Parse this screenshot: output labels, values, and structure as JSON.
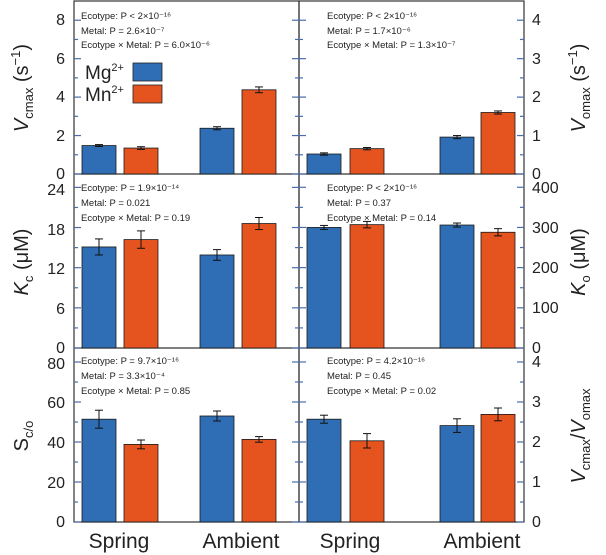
{
  "colors": {
    "mg": "#2f6db4",
    "mn": "#e5531e",
    "tick": "#4a6da8"
  },
  "legend": {
    "mg_label": "Mg",
    "mg_sup": "2+",
    "mn_label": "Mn",
    "mn_sup": "2+"
  },
  "chart_data": [
    {
      "type": "bar",
      "panel": "top-left",
      "ylabel": "V_cmax (s⁻¹)",
      "categories": [
        "Spring",
        "Ambient"
      ],
      "ylim": [
        0,
        9
      ],
      "yticks": [
        0,
        2,
        4,
        6,
        8
      ],
      "series": [
        {
          "name": "Mg2+",
          "values": [
            1.48,
            2.38
          ],
          "errors": [
            0.05,
            0.08
          ]
        },
        {
          "name": "Mn2+",
          "values": [
            1.35,
            4.38
          ],
          "errors": [
            0.07,
            0.15
          ]
        }
      ],
      "stats": [
        "Ecotype: P < 2×10⁻¹⁶",
        "Metal: P = 2.6×10⁻⁷",
        "Ecotype × Metal: P = 6.0×10⁻⁶"
      ]
    },
    {
      "type": "bar",
      "panel": "top-right",
      "ylabel": "V_omax (s⁻¹)",
      "categories": [
        "Spring",
        "Ambient"
      ],
      "ylim": [
        0,
        4.5
      ],
      "yticks": [
        0,
        1,
        2,
        3,
        4
      ],
      "series": [
        {
          "name": "Mg2+",
          "values": [
            0.52,
            0.96
          ],
          "errors": [
            0.03,
            0.04
          ]
        },
        {
          "name": "Mn2+",
          "values": [
            0.66,
            1.6
          ],
          "errors": [
            0.03,
            0.04
          ]
        }
      ],
      "stats": [
        "Ecotype: P < 2×10⁻¹⁶",
        "Metal: P = 1.7×10⁻⁶",
        "Ecotype × Metal: P = 1.3×10⁻⁷"
      ]
    },
    {
      "type": "bar",
      "panel": "middle-left",
      "ylabel": "K_c (μM)",
      "categories": [
        "Spring",
        "Ambient"
      ],
      "ylim": [
        0,
        26
      ],
      "yticks": [
        0,
        6,
        12,
        18,
        24
      ],
      "series": [
        {
          "name": "Mg2+",
          "values": [
            15.1,
            13.9
          ],
          "errors": [
            1.2,
            0.8
          ]
        },
        {
          "name": "Mn2+",
          "values": [
            16.2,
            18.6
          ],
          "errors": [
            1.3,
            0.9
          ]
        }
      ],
      "stats": [
        "Ecotype: P = 1.9×10⁻¹⁴",
        "Metal: P = 0.021",
        "Ecotype × Metal: P = 0.19"
      ]
    },
    {
      "type": "bar",
      "panel": "middle-right",
      "ylabel": "K_o (μM)",
      "categories": [
        "Spring",
        "Ambient"
      ],
      "ylim": [
        0,
        433
      ],
      "yticks": [
        0,
        100,
        200,
        300,
        400
      ],
      "series": [
        {
          "name": "Mg2+",
          "values": [
            300,
            306
          ],
          "errors": [
            5,
            5
          ]
        },
        {
          "name": "Mn2+",
          "values": [
            307,
            288
          ],
          "errors": [
            8,
            9
          ]
        }
      ],
      "stats": [
        "Ecotype: P < 2×10⁻¹⁶",
        "Metal: P = 0.37",
        "Ecotype × Metal: P = 0.14"
      ]
    },
    {
      "type": "bar",
      "panel": "bottom-left",
      "ylabel": "S_c/o",
      "categories": [
        "Spring",
        "Ambient"
      ],
      "ylim": [
        0,
        87
      ],
      "yticks": [
        0,
        20,
        40,
        60,
        80
      ],
      "series": [
        {
          "name": "Mg2+",
          "values": [
            51.4,
            53
          ],
          "errors": [
            4.5,
            2.5
          ]
        },
        {
          "name": "Mn2+",
          "values": [
            38.8,
            41.3
          ],
          "errors": [
            2.2,
            1.4
          ]
        }
      ],
      "stats": [
        "Ecotype: P = 9.7×10⁻¹⁶",
        "Metal: P = 3.3×10⁻⁴",
        "Ecotype × Metal: P = 0.85"
      ]
    },
    {
      "type": "bar",
      "panel": "bottom-right",
      "ylabel": "V_cmax/V_omax",
      "categories": [
        "Spring",
        "Ambient"
      ],
      "ylim": [
        0,
        4.35
      ],
      "yticks": [
        0,
        1,
        2,
        3,
        4
      ],
      "series": [
        {
          "name": "Mg2+",
          "values": [
            2.57,
            2.41
          ],
          "errors": [
            0.1,
            0.17
          ]
        },
        {
          "name": "Mn2+",
          "values": [
            2.03,
            2.69
          ],
          "errors": [
            0.18,
            0.16
          ]
        }
      ],
      "stats": [
        "Ecotype: P = 4.2×10⁻¹⁶",
        "Metal: P = 0.45",
        "Ecotype × Metal: P = 0.02"
      ]
    }
  ],
  "text": {
    "x_spring": "Spring",
    "x_ambient": "Ambient",
    "y_vcmax_main": "V",
    "y_vcmax_sub": "cmax",
    "y_vcmax_unit": " (s",
    "y_unit_sup": "−1",
    "y_unit_close": ")",
    "y_vomax_main": "V",
    "y_vomax_sub": "omax",
    "y_kc_main": "K",
    "y_kc_sub": "c",
    "y_um_unit": " (μM)",
    "y_ko_main": "K",
    "y_ko_sub": "o",
    "y_sco_main": "S",
    "y_sco_sub": "c/o",
    "y_ratio_main1": "V",
    "y_ratio_sub1": "cmax",
    "y_ratio_slash": "/",
    "y_ratio_main2": "V",
    "y_ratio_sub2": "omax",
    "yt_tl_0": "0",
    "yt_tl_1": "2",
    "yt_tl_2": "4",
    "yt_tl_3": "6",
    "yt_tl_4": "8",
    "yt_ml_0": "0",
    "yt_ml_1": "6",
    "yt_ml_2": "12",
    "yt_ml_3": "18",
    "yt_ml_4": "24",
    "yt_bl_0": "0",
    "yt_bl_1": "20",
    "yt_bl_2": "40",
    "yt_bl_3": "60",
    "yt_bl_4": "80",
    "yt_tr_0": "0",
    "yt_tr_1": "1",
    "yt_tr_2": "2",
    "yt_tr_3": "3",
    "yt_tr_4": "4",
    "yt_mr_0": "0",
    "yt_mr_1": "100",
    "yt_mr_2": "200",
    "yt_mr_3": "300",
    "yt_mr_4": "400",
    "yt_br_0": "0",
    "yt_br_1": "1",
    "yt_br_2": "2",
    "yt_br_3": "3",
    "yt_br_4": "4"
  }
}
